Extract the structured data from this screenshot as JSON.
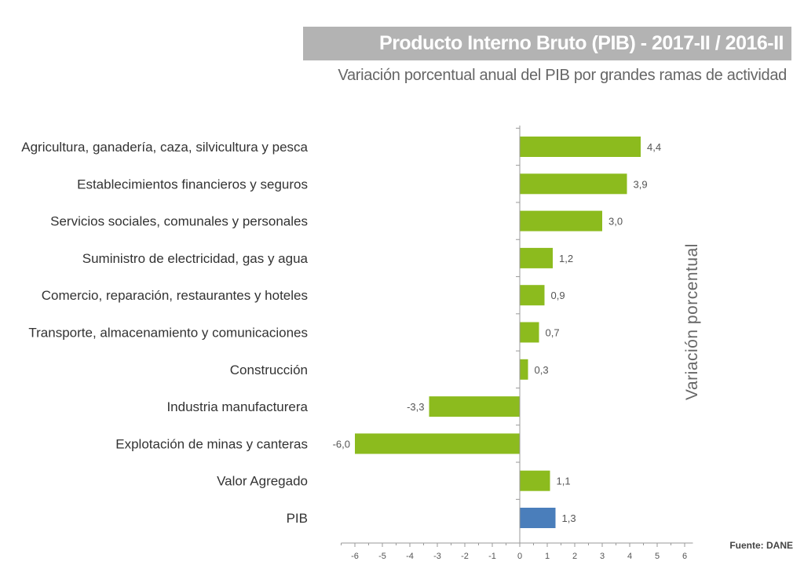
{
  "chart_data": {
    "type": "bar",
    "orientation": "horizontal",
    "title": "Producto Interno Bruto (PIB) - 2017-II / 2016-II",
    "subtitle": "Variación porcentual anual del PIB por grandes ramas de actividad",
    "ylabel": "Variación porcentual",
    "source": "Fuente: DANE",
    "categories": [
      "Agricultura, ganadería, caza, silvicultura y pesca",
      "Establecimientos financieros y seguros",
      "Servicios sociales, comunales y personales",
      "Suministro de electricidad, gas y agua",
      "Comercio, reparación, restaurantes y hoteles",
      "Transporte, almacenamiento y comunicaciones",
      "Construcción",
      "Industria manufacturera",
      "Explotación de minas y canteras",
      "Valor Agregado",
      "PIB"
    ],
    "values": [
      4.4,
      3.9,
      3.0,
      1.2,
      0.9,
      0.7,
      0.3,
      -3.3,
      -6.0,
      1.1,
      1.3
    ],
    "value_labels": [
      "4,4",
      "3,9",
      "3,0",
      "1,2",
      "0,9",
      "0,7",
      "0,3",
      "-3,3",
      "-6,0",
      "1,1",
      "1,3"
    ],
    "bar_colors": [
      "#8cbb1e",
      "#8cbb1e",
      "#8cbb1e",
      "#8cbb1e",
      "#8cbb1e",
      "#8cbb1e",
      "#8cbb1e",
      "#8cbb1e",
      "#8cbb1e",
      "#8cbb1e",
      "#4a7ebb"
    ],
    "xlim": [
      -6.5,
      6.3
    ],
    "xticks": [
      -6,
      -5,
      -4,
      -3,
      -2,
      -1,
      0,
      1,
      2,
      3,
      4,
      5,
      6
    ],
    "xtick_labels": [
      "-6",
      "-5",
      "-4",
      "-3",
      "-2",
      "-1",
      "0",
      "1",
      "2",
      "3",
      "4",
      "5",
      "6"
    ],
    "grid": false,
    "legend": "none"
  }
}
